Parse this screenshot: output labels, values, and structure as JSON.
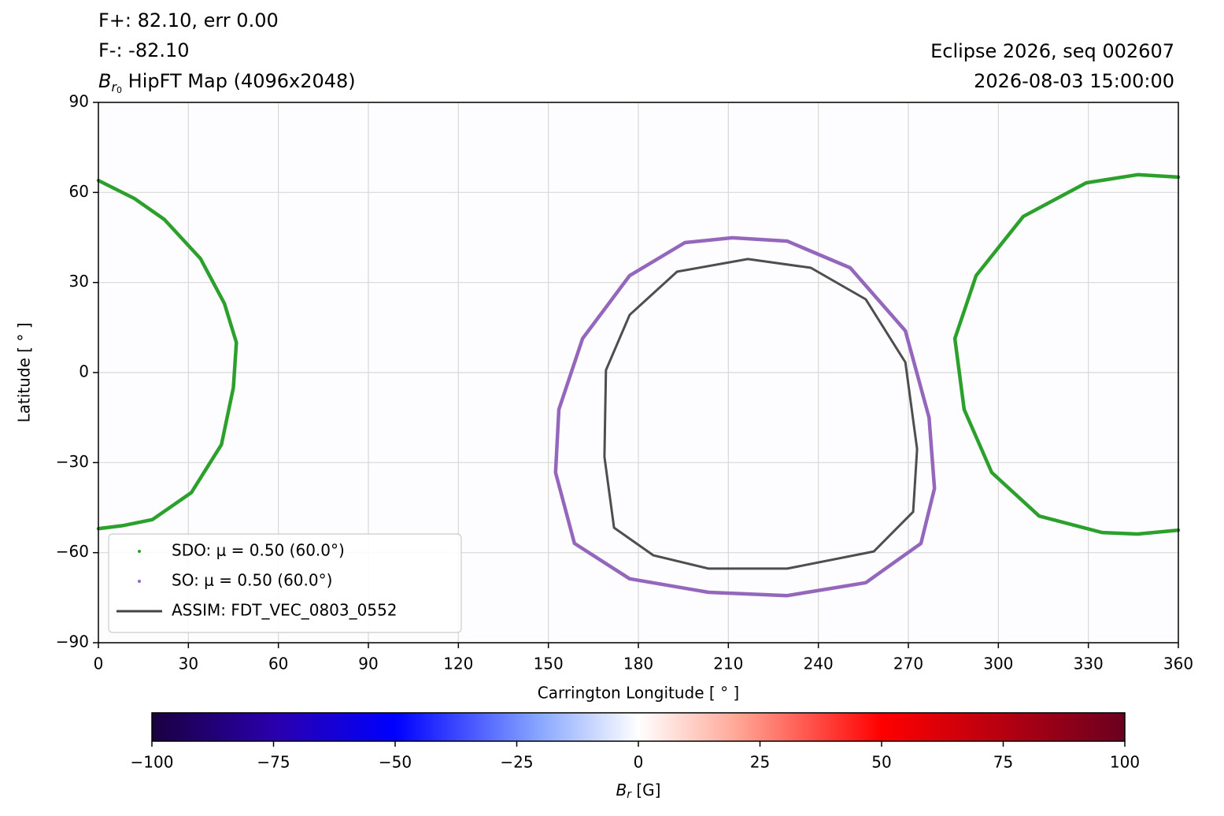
{
  "chart_data": {
    "type": "contour",
    "header_left": [
      "F+: 82.10, err 0.00",
      "F-: -82.10"
    ],
    "title": {
      "symbol": "B",
      "sub": "r",
      "subsub": "0",
      "text": " HipFT Map (4096x2048)"
    },
    "header_right": [
      "Eclipse 2026, seq 002607",
      "2026-08-03 15:00:00"
    ],
    "xlabel": "Carrington Longitude [ ° ]",
    "ylabel": "Latitude [ ° ]",
    "xlim": [
      0,
      360
    ],
    "ylim": [
      -90,
      90
    ],
    "xticks": [
      0,
      30,
      60,
      90,
      120,
      150,
      180,
      210,
      240,
      270,
      300,
      330,
      360
    ],
    "yticks": [
      {
        "value": -90,
        "label": "−90"
      },
      {
        "value": -60,
        "label": "−60"
      },
      {
        "value": -30,
        "label": "−30"
      },
      0,
      30,
      60,
      90
    ],
    "grid": true,
    "legend": "lower left",
    "series": [
      {
        "name": "SDO: μ = 0.50 (60.0°)",
        "color": "#2ca02c",
        "marker": "dot",
        "x": [
          0,
          12,
          22,
          34,
          42,
          46,
          45,
          41,
          31,
          18,
          8,
          0,
          null,
          360,
          346.4,
          329.3,
          308.3,
          292.6,
          285.5,
          288.6,
          297.8,
          313.6,
          334.6,
          346.4,
          360
        ],
        "y": [
          64,
          58,
          51,
          38,
          23,
          10,
          -5,
          -24,
          -40,
          -49,
          -51,
          -52,
          null,
          65.1,
          65.9,
          63.2,
          52,
          32.3,
          11.3,
          -12.3,
          -33.3,
          -47.8,
          -53.3,
          -53.8,
          -52.5
        ]
      },
      {
        "name": "SO: μ = 0.50 (60.0°)",
        "color": "#9467bd",
        "marker": "dot",
        "x": [
          211.3,
          229.6,
          250.6,
          269,
          276.9,
          278.7,
          274.2,
          255.8,
          229.6,
          203.4,
          177.1,
          158.7,
          152.4,
          153.5,
          161.4,
          177.1,
          195.5,
          211.3
        ],
        "y": [
          44.9,
          43.8,
          34.9,
          13.9,
          -15,
          -38.6,
          -56.9,
          -70,
          -74.3,
          -73.2,
          -68.7,
          -56.9,
          -33.3,
          -12.3,
          11.3,
          32.3,
          43.3,
          44.9
        ]
      },
      {
        "name": "ASSIM: FDT_VEC_0803_0552",
        "color": "#444444",
        "marker": "line",
        "x": [
          216.5,
          237.5,
          255.8,
          269,
          272.9,
          271.6,
          258.5,
          229.6,
          203.4,
          185,
          171.9,
          168.7,
          169.2,
          177.1,
          192.9,
          216.5
        ],
        "y": [
          37.8,
          34.9,
          24.4,
          3.4,
          -25.5,
          -46.4,
          -59.6,
          -65.3,
          -65.3,
          -60.9,
          -51.7,
          -28.1,
          0.8,
          19.2,
          33.6,
          37.8
        ]
      }
    ],
    "colorbar": {
      "label": {
        "symbol": "B",
        "sub": "r",
        "text": " [G]"
      },
      "clim": [
        -100,
        100
      ],
      "ticks": [
        {
          "value": -100,
          "label": "−100"
        },
        {
          "value": -75,
          "label": "−75"
        },
        {
          "value": -50,
          "label": "−50"
        },
        {
          "value": -25,
          "label": "−25"
        },
        0,
        25,
        50,
        75,
        100
      ]
    }
  }
}
